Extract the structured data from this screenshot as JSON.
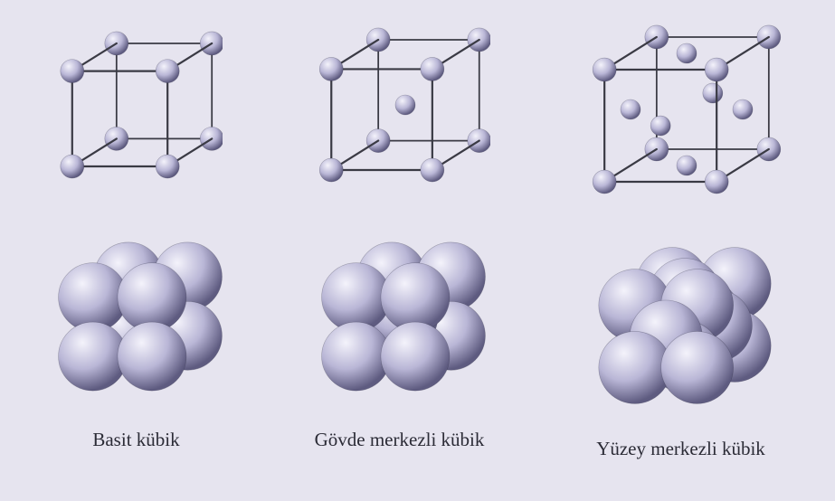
{
  "background_color": "#e6e4ef",
  "caption_font_size_pt": 16,
  "caption_color": "#2b2b36",
  "edge_color": "#3a3a44",
  "edge_width_top": 2.2,
  "edge_width_packed": 0,
  "sphere_gradient": {
    "highlight": "#f4f3fb",
    "mid": "#b9b6d6",
    "shadow": "#5e5b80"
  },
  "structures": [
    {
      "id": "simple",
      "caption": "Basit kübik",
      "top_cube_size": 170,
      "top_corner_r": 13,
      "top_extra_atoms": [],
      "packed_size": 210,
      "packed_sphere_r": 38,
      "packed_layout": "sc"
    },
    {
      "id": "bcc",
      "caption": "Gövde merkezli kübik",
      "top_cube_size": 180,
      "top_corner_r": 13,
      "top_extra_atoms": [
        {
          "fx": 0.5,
          "fy": 0.5,
          "fz": 0.5,
          "r": 11
        }
      ],
      "packed_size": 230,
      "packed_sphere_r": 38,
      "packed_layout": "bcc"
    },
    {
      "id": "fcc",
      "caption": "Yüzey merkezli kübik",
      "top_cube_size": 200,
      "top_corner_r": 13,
      "top_extra_atoms": [
        {
          "fx": 0.5,
          "fy": 0.5,
          "fz": 0.0,
          "r": 11
        },
        {
          "fx": 0.5,
          "fy": 0.5,
          "fz": 1.0,
          "r": 11
        },
        {
          "fx": 0.5,
          "fy": 0.0,
          "fz": 0.5,
          "r": 11
        },
        {
          "fx": 0.5,
          "fy": 1.0,
          "fz": 0.5,
          "r": 11
        },
        {
          "fx": 0.0,
          "fy": 0.5,
          "fz": 0.5,
          "r": 11
        },
        {
          "fx": 1.0,
          "fy": 0.5,
          "fz": 0.5,
          "r": 11
        }
      ],
      "packed_size": 250,
      "packed_sphere_r": 40,
      "packed_layout": "fcc"
    }
  ]
}
